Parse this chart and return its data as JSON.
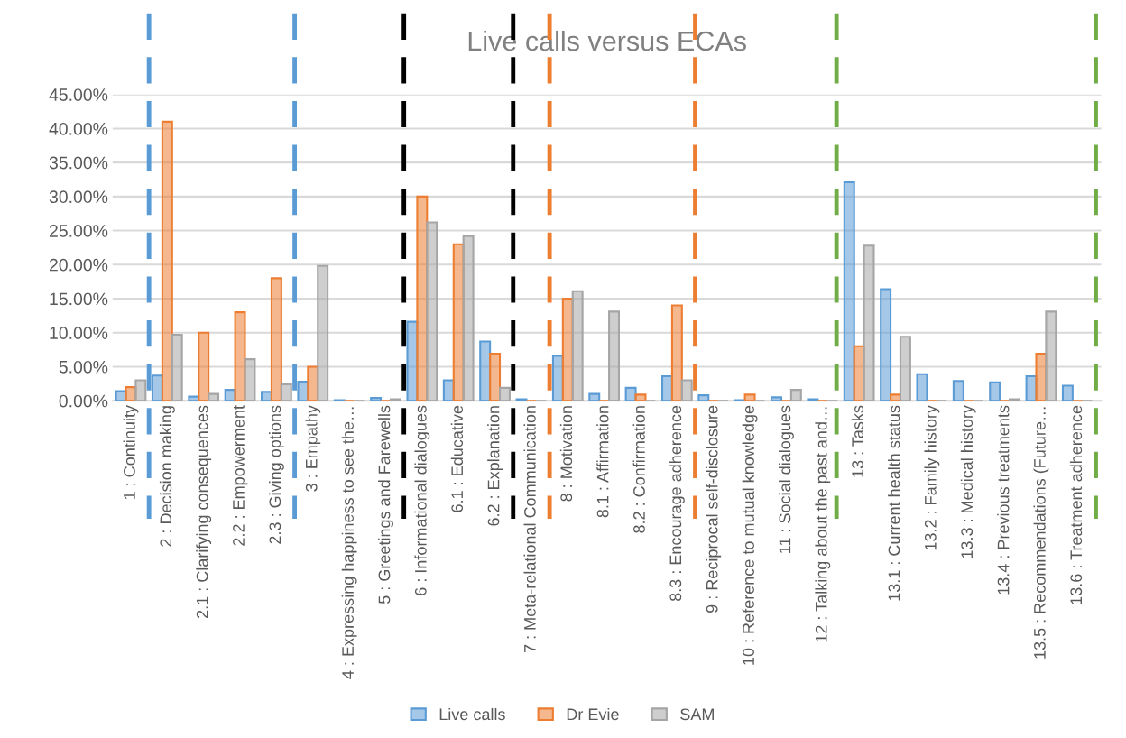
{
  "chart_data": {
    "type": "bar",
    "title": "Live calls versus ECAs",
    "categories": [
      "1 : Continuity",
      "2 : Decision making",
      "2.1 : Clarifying consequences",
      "2.2 : Empowerment",
      "2.3 : Giving options",
      "3 : Empathy",
      "4 : Expressing happiness to see the…",
      "5 : Greetings and Farewells",
      "6 : Informational dialogues",
      "6.1 : Educative",
      "6.2 : Explanation",
      "7 : Meta-relational Communication",
      "8 : Motivation",
      "8.1 : Affirmation",
      "8.2 : Confirmation",
      "8.3 : Encourage adherence",
      "9 : Reciprocal self-disclosure",
      "10 : Reference to mutual knowledge",
      "11 : Social dialogues",
      "12 : Talking about the past and…",
      "13 : Tasks",
      "13.1 : Current health status",
      "13.2 : Family history",
      "13.3 : Medical history",
      "13.4 : Previous treatments",
      "13.5 : Recommendations (Future…",
      "13.6 : Treatment adherence"
    ],
    "series": [
      {
        "name": "Live calls",
        "color": "#5b9bd5",
        "values": [
          1.4,
          3.7,
          0.6,
          1.6,
          1.3,
          2.8,
          0.1,
          0.4,
          11.6,
          3.0,
          8.7,
          0.2,
          6.6,
          1.0,
          1.9,
          3.6,
          0.8,
          0.1,
          0.5,
          0.2,
          32.1,
          16.4,
          3.9,
          2.9,
          2.7,
          3.6,
          2.2
        ]
      },
      {
        "name": "Dr Evie",
        "color": "#ed7d31",
        "values": [
          2.0,
          41.0,
          10.0,
          13.0,
          18.0,
          5.0,
          0,
          0,
          30.0,
          23.0,
          6.9,
          0,
          15.0,
          0,
          0.9,
          14.0,
          0,
          0.9,
          0,
          0,
          8.0,
          0.9,
          0,
          0,
          0,
          6.9,
          0
        ]
      },
      {
        "name": "SAM",
        "color": "#a5a5a5",
        "values": [
          3.0,
          9.7,
          1.0,
          6.1,
          2.4,
          19.8,
          0,
          0.2,
          26.2,
          24.2,
          1.9,
          0,
          16.1,
          13.1,
          0,
          3.0,
          0,
          0,
          1.6,
          0,
          22.8,
          9.4,
          0,
          0,
          0.2,
          13.1,
          0
        ]
      }
    ],
    "ylim": [
      0,
      45
    ],
    "yticks": [
      {
        "value": 0,
        "label": "0.00%"
      },
      {
        "value": 5,
        "label": "5.00%"
      },
      {
        "value": 10,
        "label": "10.00%"
      },
      {
        "value": 15,
        "label": "15.00%"
      },
      {
        "value": 20,
        "label": "20.00%"
      },
      {
        "value": 25,
        "label": "25.00%"
      },
      {
        "value": 30,
        "label": "30.00%"
      },
      {
        "value": 35,
        "label": "35.00%"
      },
      {
        "value": 40,
        "label": "40.00%"
      },
      {
        "value": 45,
        "label": "45.00%"
      }
    ],
    "grid": "y",
    "legend": "bottom"
  }
}
